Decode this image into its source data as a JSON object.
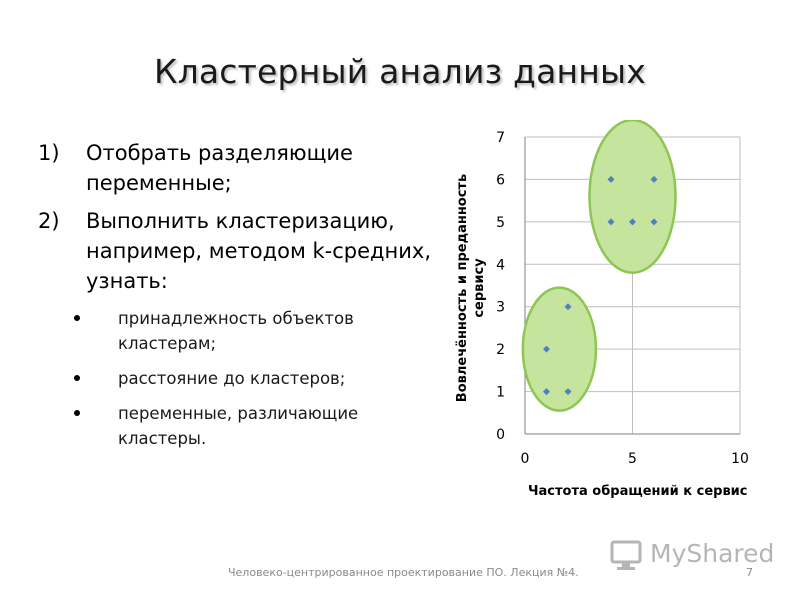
{
  "title": "Кластерный анализ данных",
  "numbered": [
    {
      "marker": "1)",
      "text": "Отобрать разделяющие переменные;"
    },
    {
      "marker": "2)",
      "text": "Выполнить кластеризацию, например, методом k-средних, узнать:"
    }
  ],
  "bullets": [
    "принадлежность объектов кластерам;",
    "расстояние до кластеров;",
    "переменные, различающие кластеры."
  ],
  "chart_data": {
    "type": "scatter",
    "xlabel": "Частота обращений к сервис",
    "ylabel": "Вовлечённость и преданность сервису",
    "xlim": [
      0,
      10
    ],
    "ylim": [
      0,
      7
    ],
    "xticks": [
      0,
      5,
      10
    ],
    "yticks": [
      0,
      1,
      2,
      3,
      4,
      5,
      6,
      7
    ],
    "grid": true,
    "points": [
      {
        "x": 1,
        "y": 1
      },
      {
        "x": 2,
        "y": 1
      },
      {
        "x": 1,
        "y": 2
      },
      {
        "x": 2,
        "y": 3
      },
      {
        "x": 4,
        "y": 5
      },
      {
        "x": 5,
        "y": 5
      },
      {
        "x": 6,
        "y": 5
      },
      {
        "x": 4,
        "y": 6
      },
      {
        "x": 6,
        "y": 6
      }
    ],
    "clusters": [
      {
        "cx": 1.6,
        "cy": 2.0,
        "rx": 1.7,
        "ry": 1.45
      },
      {
        "cx": 5.0,
        "cy": 5.6,
        "rx": 2.0,
        "ry": 1.8
      }
    ],
    "colors": {
      "point": "#4f81bd",
      "cluster_fill": "#c5e59f",
      "cluster_stroke": "#8cc653",
      "grid": "#bfbfbf"
    }
  },
  "footer": "Человеко-центрированное проектирование ПО. Лекция №4.",
  "page_number": "7",
  "watermark": {
    "text": "MyShared",
    "icon": "monitor-logo-icon"
  }
}
